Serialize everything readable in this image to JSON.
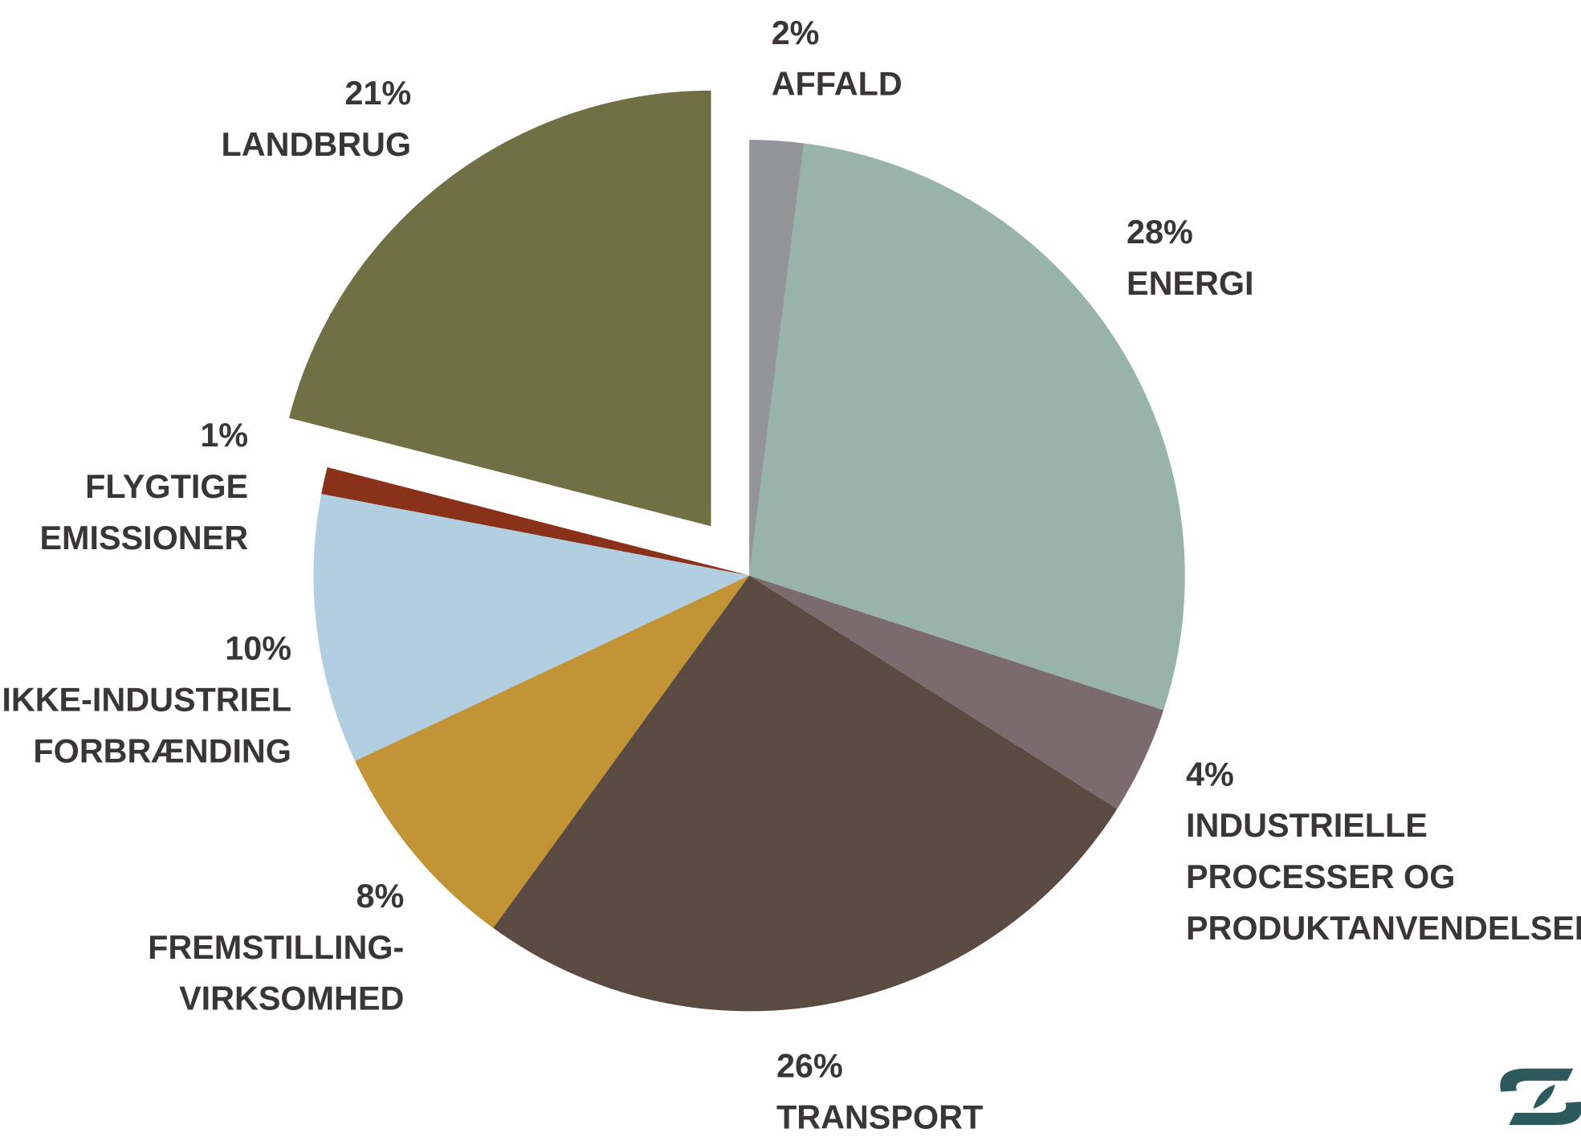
{
  "chart_data": {
    "type": "pie",
    "categories": [
      [
        "AFFALD"
      ],
      [
        "ENERGI"
      ],
      [
        "INDUSTRIELLE",
        "PROCESSER OG",
        "PRODUKTANVENDELSER"
      ],
      [
        "TRANSPORT"
      ],
      [
        "FREMSTILLING-",
        "VIRKSOMHED"
      ],
      [
        "IKKE-INDUSTRIEL",
        "FORBRÆNDING"
      ],
      [
        "FLYGTIGE",
        "EMISSIONER"
      ],
      [
        "LANDBRUG"
      ]
    ],
    "values": [
      2,
      28,
      4,
      26,
      8,
      10,
      1,
      21
    ],
    "value_labels": [
      "2%",
      "28%",
      "4%",
      "26%",
      "8%",
      "10%",
      "1%",
      "21%"
    ],
    "colors": [
      "#939598",
      "#98b3a9",
      "#7b6a6e",
      "#5a4a42",
      "#c39436",
      "#b1cfe0",
      "#8a3219",
      "#717045"
    ]
  }
}
